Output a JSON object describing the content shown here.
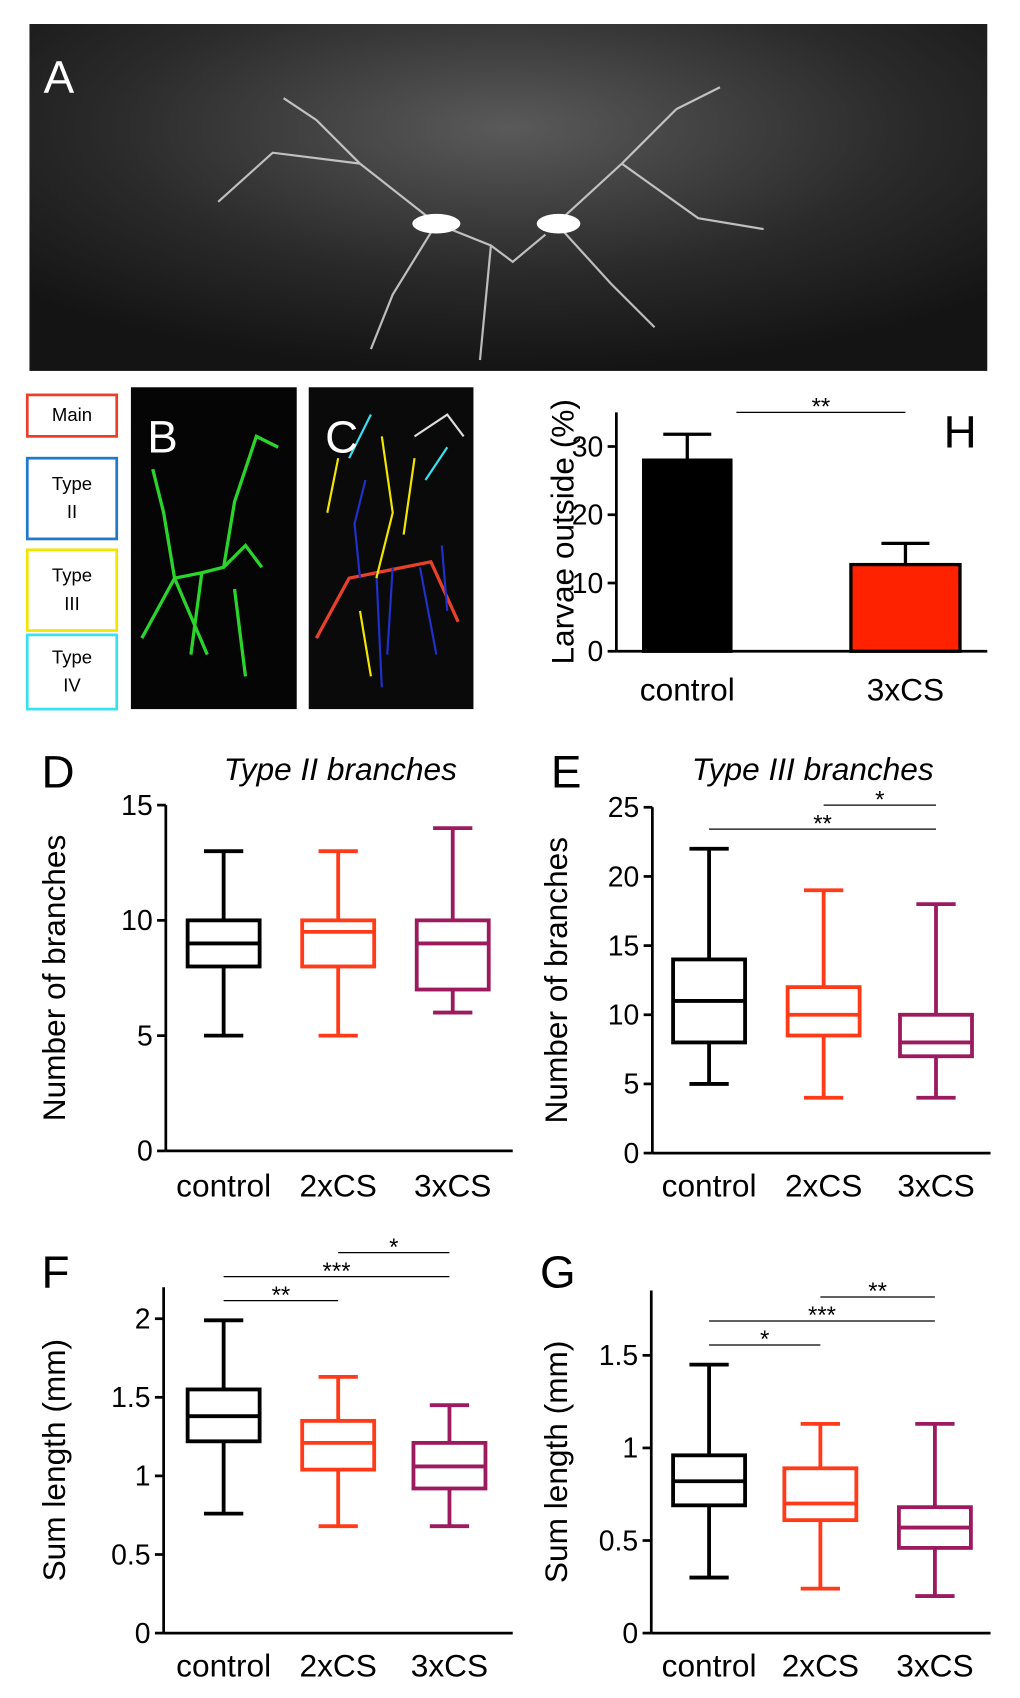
{
  "images": [
    {
      "label": "A"
    },
    {
      "label": "B"
    },
    {
      "label": "C"
    }
  ],
  "trace_legend": [
    {
      "label": "Main",
      "color": "#e8402a"
    },
    {
      "label": "Type II",
      "color": "#1f78c8"
    },
    {
      "label": "Type III",
      "color": "#f2e600"
    },
    {
      "label": "Type IV",
      "color": "#39e0f0"
    }
  ],
  "chart_data": [
    {
      "type": "bar",
      "panel_label": "H",
      "ylabel": "Larvae outside (%)",
      "categories": [
        "control",
        "3xCS"
      ],
      "values": [
        28,
        12.7
      ],
      "errors": [
        3.8,
        3.1
      ],
      "colors": [
        "#000000",
        "#ff2200"
      ],
      "ylim": [
        0,
        35
      ],
      "yticks": [
        0,
        10,
        20,
        30
      ],
      "annotations": [
        {
          "text": "**",
          "between": [
            "control",
            "3xCS"
          ]
        }
      ]
    },
    {
      "type": "box",
      "panel_label": "D",
      "title": "Type II branches",
      "ylabel": "Number of branches",
      "categories": [
        "control",
        "2xCS",
        "3xCS"
      ],
      "colors": [
        "#000000",
        "#ff3b1a",
        "#9b1b5e"
      ],
      "boxes": [
        {
          "min": 5,
          "q1": 8,
          "median": 9,
          "q3": 10,
          "max": 13
        },
        {
          "min": 5,
          "q1": 8,
          "median": 9.5,
          "q3": 10,
          "max": 13
        },
        {
          "min": 6,
          "q1": 7,
          "median": 9,
          "q3": 10,
          "max": 14
        }
      ],
      "ylim": [
        0,
        15
      ],
      "yticks": [
        0,
        5,
        10,
        15
      ],
      "annotations": []
    },
    {
      "type": "box",
      "panel_label": "E",
      "title": "Type III branches",
      "ylabel": "Number of branches",
      "categories": [
        "control",
        "2xCS",
        "3xCS"
      ],
      "colors": [
        "#000000",
        "#ff3b1a",
        "#9b1b5e"
      ],
      "boxes": [
        {
          "min": 5,
          "q1": 8,
          "median": 11,
          "q3": 14,
          "max": 22
        },
        {
          "min": 4,
          "q1": 8.5,
          "median": 10,
          "q3": 12,
          "max": 19
        },
        {
          "min": 4,
          "q1": 7,
          "median": 8,
          "q3": 10,
          "max": 18
        }
      ],
      "ylim": [
        0,
        25
      ],
      "yticks": [
        0,
        5,
        10,
        15,
        20,
        25
      ],
      "annotations": [
        {
          "text": "**",
          "between": [
            "control",
            "3xCS"
          ]
        },
        {
          "text": "*",
          "between": [
            "2xCS",
            "3xCS"
          ]
        }
      ]
    },
    {
      "type": "box",
      "panel_label": "F",
      "ylabel": "Sum length (mm)",
      "categories": [
        "control",
        "2xCS",
        "3xCS"
      ],
      "colors": [
        "#000000",
        "#ff3b1a",
        "#9b1b5e"
      ],
      "boxes": [
        {
          "min": 0.76,
          "q1": 1.22,
          "median": 1.38,
          "q3": 1.55,
          "max": 1.99
        },
        {
          "min": 0.68,
          "q1": 1.04,
          "median": 1.21,
          "q3": 1.35,
          "max": 1.63
        },
        {
          "min": 0.68,
          "q1": 0.92,
          "median": 1.06,
          "q3": 1.21,
          "max": 1.45
        }
      ],
      "ylim": [
        0,
        2.2
      ],
      "yticks": [
        0,
        0.5,
        1,
        1.5,
        2
      ],
      "annotations": [
        {
          "text": "**",
          "between": [
            "control",
            "2xCS"
          ]
        },
        {
          "text": "***",
          "between": [
            "control",
            "3xCS"
          ]
        },
        {
          "text": "*",
          "between": [
            "2xCS",
            "3xCS"
          ]
        }
      ]
    },
    {
      "type": "box",
      "panel_label": "G",
      "ylabel": "Sum length (mm)",
      "categories": [
        "control",
        "2xCS",
        "3xCS"
      ],
      "colors": [
        "#000000",
        "#ff3b1a",
        "#9b1b5e"
      ],
      "boxes": [
        {
          "min": 0.3,
          "q1": 0.69,
          "median": 0.82,
          "q3": 0.96,
          "max": 1.45
        },
        {
          "min": 0.24,
          "q1": 0.61,
          "median": 0.7,
          "q3": 0.89,
          "max": 1.13
        },
        {
          "min": 0.2,
          "q1": 0.46,
          "median": 0.57,
          "q3": 0.68,
          "max": 1.13
        }
      ],
      "ylim": [
        0,
        1.85
      ],
      "yticks": [
        0,
        0.5,
        1,
        1.5
      ],
      "annotations": [
        {
          "text": "*",
          "between": [
            "control",
            "2xCS"
          ]
        },
        {
          "text": "***",
          "between": [
            "control",
            "3xCS"
          ]
        },
        {
          "text": "**",
          "between": [
            "2xCS",
            "3xCS"
          ]
        }
      ]
    }
  ]
}
